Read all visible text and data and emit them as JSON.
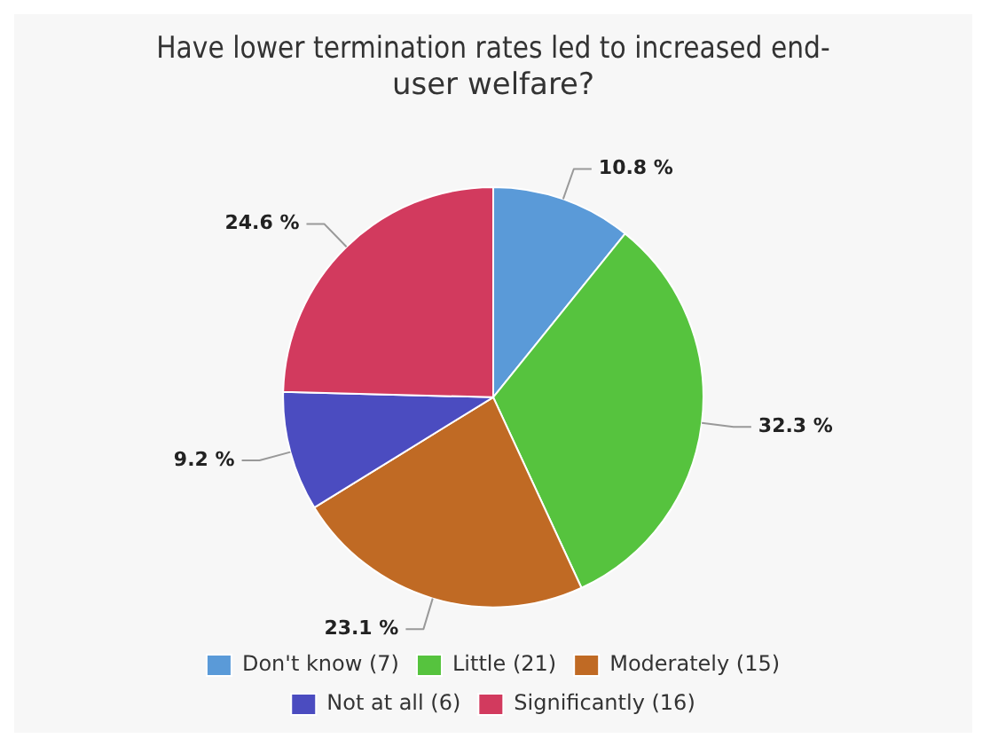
{
  "chart_data": {
    "type": "pie",
    "title": "Have lower termination rates led to increased end-user welfare?",
    "categories": [
      "Don't know (7)",
      "Little (21)",
      "Moderately (15)",
      "Not at all (6)",
      "Significantly (16)"
    ],
    "values": [
      10.8,
      32.3,
      23.1,
      9.2,
      24.6
    ],
    "value_labels": [
      "10.8 %",
      "32.3 %",
      "23.1 %",
      "9.2 %",
      "24.6 %"
    ],
    "colors": [
      "#5a9ad8",
      "#56c33e",
      "#c06a24",
      "#4b4cc0",
      "#d23a5e"
    ],
    "legend": "bottom"
  }
}
